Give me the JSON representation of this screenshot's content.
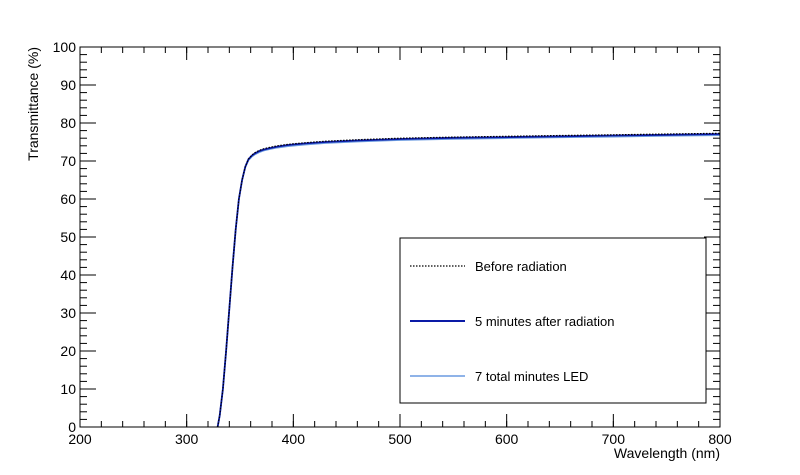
{
  "chart_data": {
    "type": "line",
    "title": "",
    "xlabel": "Wavelength (nm)",
    "ylabel": "Transmittance (%)",
    "xlim": [
      200,
      800
    ],
    "ylim": [
      0,
      100
    ],
    "x_ticks": [
      200,
      300,
      400,
      500,
      600,
      700,
      800
    ],
    "y_ticks": [
      0,
      10,
      20,
      30,
      40,
      50,
      60,
      70,
      80,
      90,
      100
    ],
    "legend_position": "lower-right",
    "series": [
      {
        "name": "Before radiation",
        "color": "#000000",
        "style": "dotted",
        "x": [
          329,
          331,
          334,
          337,
          340,
          343,
          346,
          349,
          352,
          355,
          358,
          361,
          364,
          368,
          372,
          378,
          385,
          395,
          410,
          430,
          460,
          500,
          550,
          600,
          650,
          700,
          750,
          800
        ],
        "y": [
          0,
          3,
          10,
          20,
          31,
          42,
          52,
          60,
          65,
          68.5,
          70.5,
          71.5,
          72.2,
          72.8,
          73.2,
          73.6,
          74,
          74.4,
          74.8,
          75.2,
          75.6,
          76,
          76.3,
          76.5,
          76.7,
          76.9,
          77.1,
          77.3
        ]
      },
      {
        "name": "5 minutes after radiation",
        "color": "#0a1aa6",
        "style": "solid",
        "x": [
          329,
          331,
          334,
          337,
          340,
          343,
          346,
          349,
          352,
          355,
          358,
          361,
          364,
          368,
          372,
          378,
          385,
          395,
          410,
          430,
          460,
          500,
          550,
          600,
          650,
          700,
          750,
          800
        ],
        "y": [
          0,
          3,
          10,
          20,
          31,
          42,
          52,
          60,
          65,
          68.5,
          70.5,
          71.4,
          72,
          72.6,
          73,
          73.4,
          73.8,
          74.2,
          74.6,
          75,
          75.4,
          75.8,
          76.1,
          76.3,
          76.5,
          76.7,
          76.9,
          77.1
        ]
      },
      {
        "name": "7 total minutes LED",
        "color": "#6a9ae0",
        "style": "solid",
        "x": [
          329,
          331,
          334,
          337,
          340,
          343,
          346,
          349,
          352,
          355,
          358,
          361,
          364,
          368,
          372,
          378,
          385,
          395,
          410,
          430,
          460,
          500,
          550,
          600,
          650,
          700,
          750,
          800
        ],
        "y": [
          0,
          3,
          10,
          20,
          31,
          42,
          52,
          60,
          65,
          68.3,
          70.2,
          71.1,
          71.7,
          72.3,
          72.7,
          73.1,
          73.5,
          73.9,
          74.3,
          74.7,
          75.1,
          75.5,
          75.8,
          76,
          76.2,
          76.4,
          76.6,
          76.8
        ]
      }
    ]
  }
}
